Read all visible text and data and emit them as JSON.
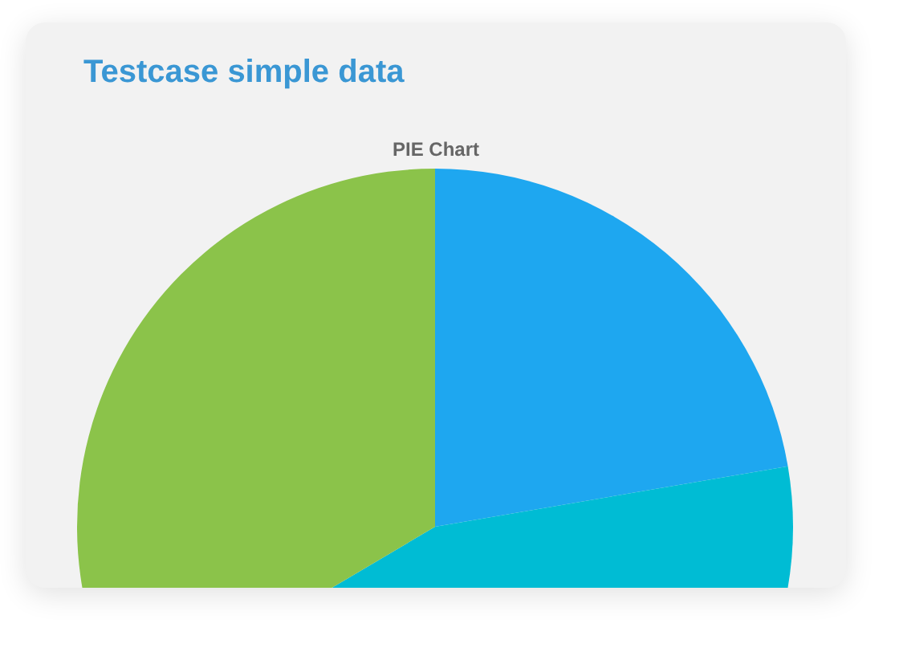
{
  "chart_data": {
    "type": "pie",
    "title": "Testcase simple data",
    "subtitle": "PIE Chart",
    "categories": [
      null,
      null,
      null
    ],
    "values": [
      22.3,
      44.2,
      33.5
    ],
    "colors": [
      "#1ea7f0",
      "#00bcd4",
      "#8bc34a"
    ]
  }
}
